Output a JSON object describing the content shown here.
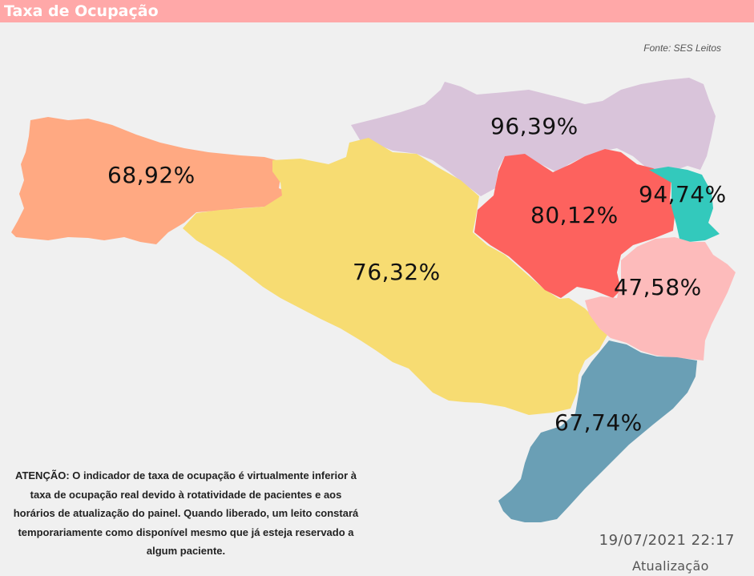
{
  "header": {
    "title": "Taxa de Ocupação"
  },
  "source": "Fonte: SES Leitos",
  "regions": [
    {
      "value": "68,92%",
      "color": "#ffa982"
    },
    {
      "value": "96,39%",
      "color": "#d9c4da"
    },
    {
      "value": "76,32%",
      "color": "#f7dc72"
    },
    {
      "value": "80,12%",
      "color": "#fd625e"
    },
    {
      "value": "94,74%",
      "color": "#33c9bc"
    },
    {
      "value": "47,58%",
      "color": "#fdbbbb"
    },
    {
      "value": "67,74%",
      "color": "#6a9fb5"
    }
  ],
  "notice": "ATENÇÃO: O indicador de taxa de ocupação é virtualmente inferior à taxa de ocupação real devido à rotatividade de pacientes e aos horários de atualização do painel.  Quando liberado, um leito constará temporariamente como disponível mesmo que já esteja reservado a algum paciente.",
  "update": {
    "timestamp": "19/07/2021 22:17",
    "label": "Atualização"
  }
}
